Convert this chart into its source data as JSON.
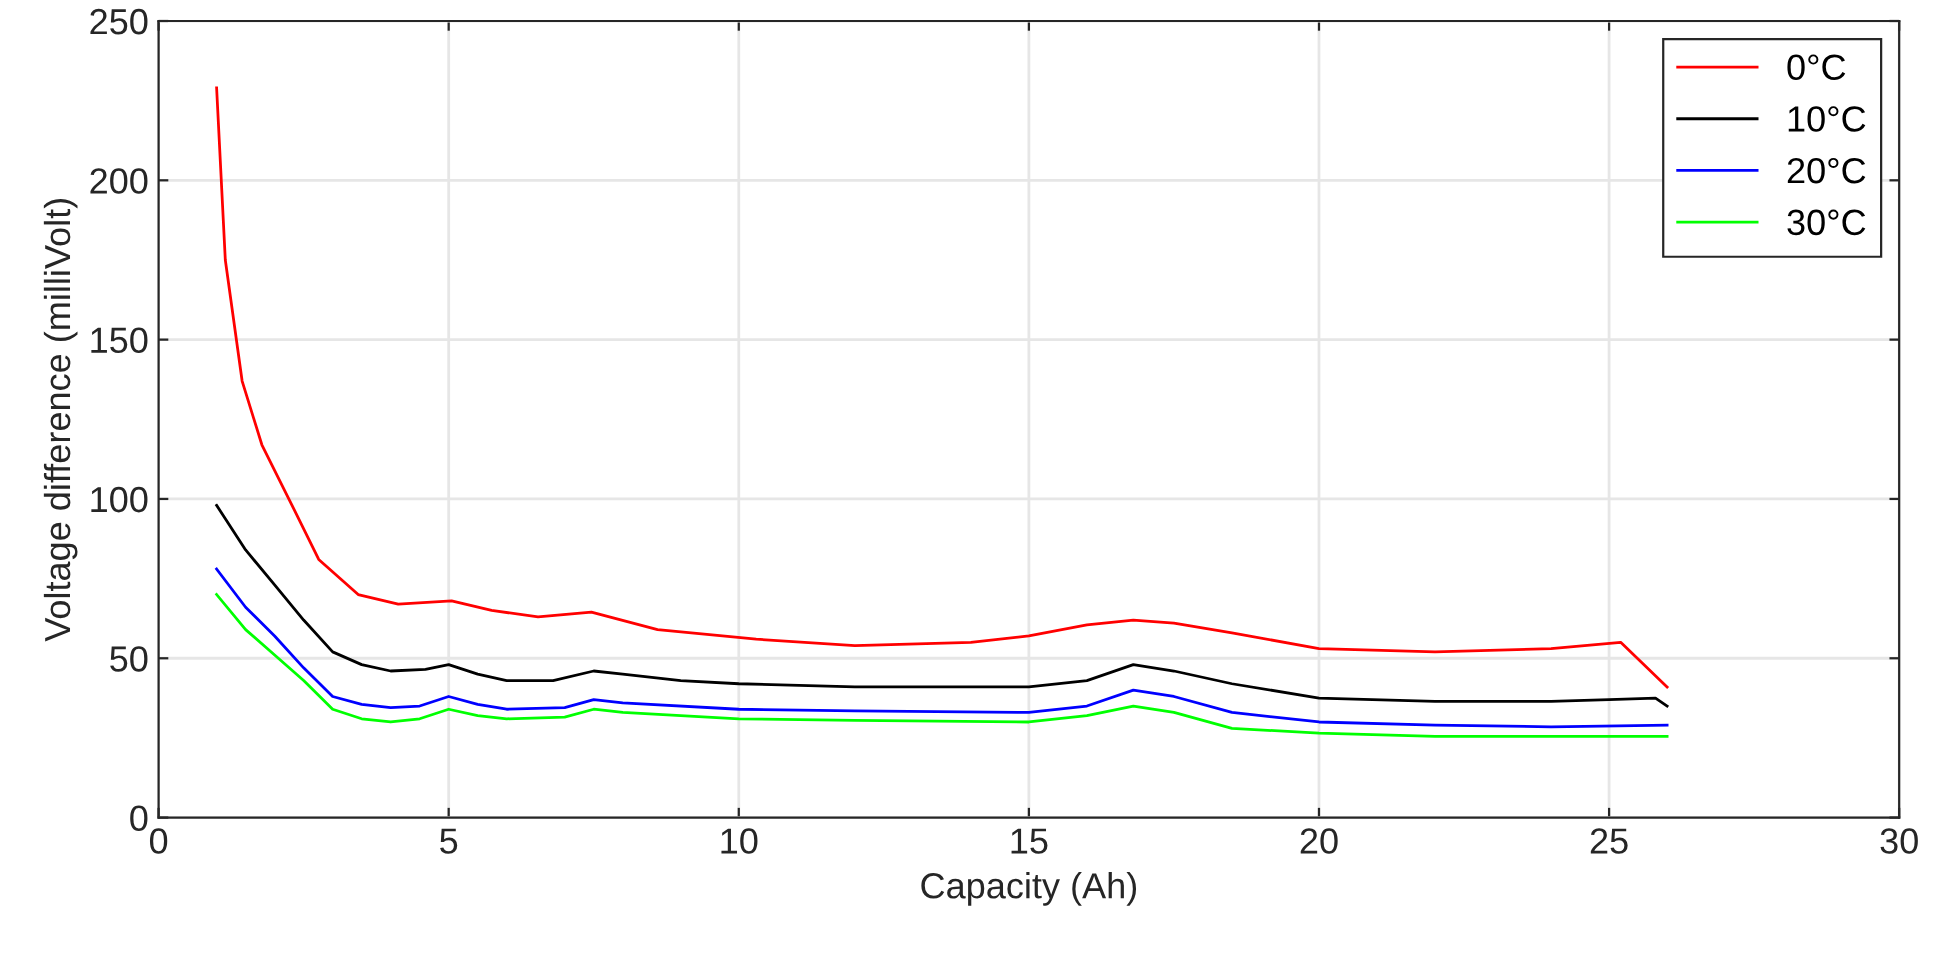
{
  "chart_data": {
    "type": "line",
    "xlabel": "Capacity (Ah)",
    "ylabel": "Voltage difference (milliVolt)",
    "xlim": [
      0,
      30
    ],
    "xticks": [
      0,
      5,
      10,
      15,
      20,
      25,
      30
    ],
    "ylim": [
      0,
      250
    ],
    "yticks": [
      0,
      50,
      100,
      150,
      200,
      250
    ],
    "grid": true,
    "legend": "top right",
    "marker": "none",
    "line_style": "solid",
    "series": [
      {
        "name": "0°C",
        "color": "#ff0000",
        "x": [
          1,
          1.15,
          1.44,
          1.78,
          2.3,
          2.76,
          3.44,
          4.13,
          5.05,
          5.74,
          6.54,
          7.46,
          8.6,
          10.3,
          12,
          14,
          15,
          16,
          16.8,
          17.5,
          18.5,
          20,
          22,
          24,
          25.2,
          26
        ],
        "values": [
          229,
          175,
          137,
          117,
          98,
          81,
          70,
          67,
          68,
          65,
          63,
          64.5,
          59,
          56,
          54,
          55,
          57,
          60.5,
          62,
          61,
          58,
          53,
          52,
          53,
          55,
          41
        ]
      },
      {
        "name": "10°C",
        "color": "#000000",
        "x": [
          1,
          1.5,
          2,
          2.5,
          3,
          3.5,
          4,
          4.6,
          5,
          5.5,
          6,
          6.8,
          7.5,
          8,
          9,
          10,
          12,
          14,
          15,
          16,
          16.8,
          17.5,
          18.5,
          20,
          22,
          24,
          25,
          25.8,
          26
        ],
        "values": [
          98,
          84,
          73,
          62,
          52,
          48,
          46,
          46.5,
          48,
          45,
          43,
          43,
          46,
          45,
          43,
          42,
          41,
          41,
          41,
          43,
          48,
          46,
          42,
          37.5,
          36.5,
          36.5,
          37,
          37.5,
          35
        ]
      },
      {
        "name": "20°C",
        "color": "#0000ff",
        "x": [
          1,
          1.5,
          2,
          2.5,
          3,
          3.5,
          4,
          4.5,
          5,
          5.5,
          6,
          7,
          7.5,
          8,
          10,
          12,
          15,
          16,
          16.8,
          17.5,
          18.5,
          20,
          22,
          24,
          26
        ],
        "values": [
          78,
          66,
          57,
          47,
          38,
          35.5,
          34.5,
          35,
          38,
          35.5,
          34,
          34.5,
          37,
          36,
          34,
          33.5,
          33,
          35,
          40,
          38,
          33,
          30,
          29,
          28.5,
          29
        ]
      },
      {
        "name": "30°C",
        "color": "#00ff00",
        "x": [
          1,
          1.5,
          2,
          2.5,
          3,
          3.5,
          4,
          4.5,
          5,
          5.5,
          6,
          7,
          7.5,
          8,
          10,
          12,
          15,
          16,
          16.8,
          17.5,
          18.5,
          20,
          22,
          24,
          26
        ],
        "values": [
          70,
          59,
          51,
          43,
          34,
          31,
          30,
          31,
          34,
          32,
          31,
          31.5,
          34,
          33,
          31,
          30.5,
          30,
          32,
          35,
          33,
          28,
          26.5,
          25.5,
          25.5,
          25.5
        ]
      }
    ]
  }
}
